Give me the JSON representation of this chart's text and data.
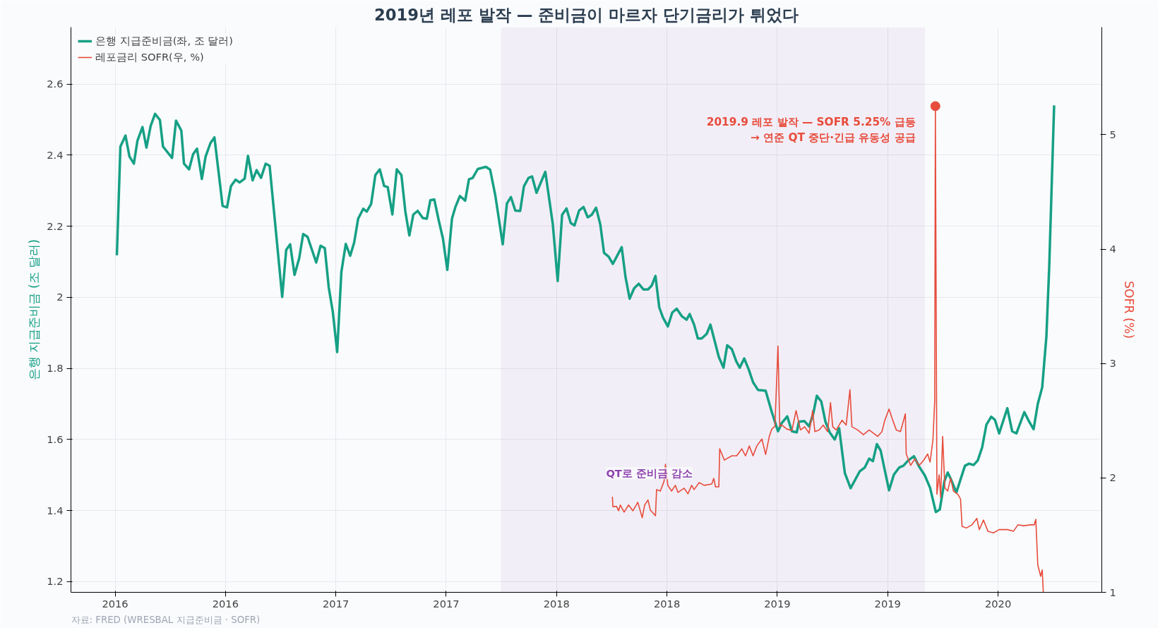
{
  "chart_data": {
    "type": "line",
    "title": "2019년 레포 발작 — 준비금이 마르자 단기금리가 튀었다",
    "ylabel": "은행 지급준비금 (조 달러)",
    "y2label": "SOFR (%)",
    "xlim": [
      2015.8,
      2020.47
    ],
    "xticks": [
      {
        "value": 2016.0,
        "label": "2016"
      },
      {
        "value": 2016.5,
        "label": "2016"
      },
      {
        "value": 2017.0,
        "label": "2017"
      },
      {
        "value": 2017.5,
        "label": "2017"
      },
      {
        "value": 2018.0,
        "label": "2018"
      },
      {
        "value": 2018.5,
        "label": "2018"
      },
      {
        "value": 2019.0,
        "label": "2019"
      },
      {
        "value": 2019.5,
        "label": "2019"
      },
      {
        "value": 2020.0,
        "label": "2020"
      }
    ],
    "ylim": [
      1.17,
      2.76
    ],
    "yticks": [
      1.2,
      1.4,
      1.6,
      1.8,
      2.0,
      2.2,
      2.4,
      2.6
    ],
    "y2lim": [
      1,
      5.94
    ],
    "y2ticks": [
      1,
      2,
      3,
      4,
      5
    ],
    "grid": true,
    "legend": "top left",
    "line_style": "solid",
    "series": [
      {
        "name": "은행 지급준비금(좌, 조 달러)",
        "color": "#16a085",
        "x": [
          2016.008,
          2016.024,
          2016.047,
          2016.065,
          2016.085,
          2016.101,
          2016.124,
          2016.142,
          2016.161,
          2016.181,
          2016.203,
          2016.217,
          2016.258,
          2016.276,
          2016.3,
          2016.312,
          2016.335,
          2016.353,
          2016.371,
          2016.393,
          2016.41,
          2016.432,
          2016.45,
          2016.487,
          2016.507,
          2016.525,
          2016.546,
          2016.564,
          2016.587,
          2016.602,
          2016.623,
          2016.641,
          2016.661,
          2016.682,
          2016.7,
          2016.757,
          2016.775,
          2016.793,
          2016.813,
          2016.834,
          2016.852,
          2016.872,
          2016.911,
          2016.931,
          2016.95,
          2016.968,
          2016.986,
          2017.006,
          2017.025,
          2017.045,
          2017.065,
          2017.083,
          2017.101,
          2017.124,
          2017.14,
          2017.16,
          2017.179,
          2017.199,
          2017.219,
          2017.235,
          2017.256,
          2017.276,
          2017.297,
          2017.315,
          2017.333,
          2017.351,
          2017.371,
          2017.394,
          2017.412,
          2017.428,
          2017.446,
          2017.467,
          2017.485,
          2017.505,
          2017.526,
          2017.541,
          2017.562,
          2017.586,
          2017.603,
          2017.62,
          2017.643,
          2017.68,
          2017.699,
          2017.722,
          2017.756,
          2017.775,
          2017.793,
          2017.813,
          2017.835,
          2017.852,
          2017.873,
          2017.889,
          2017.909,
          2017.949,
          2017.983,
          2018.005,
          2018.025,
          2018.045,
          2018.064,
          2018.081,
          2018.102,
          2018.122,
          2018.141,
          2018.159,
          2018.179,
          2018.198,
          2018.215,
          2018.236,
          2018.255,
          2018.278,
          2018.295,
          2018.312,
          2018.331,
          2018.351,
          2018.372,
          2018.394,
          2018.414,
          2018.431,
          2018.448,
          2018.465,
          2018.482,
          2018.504,
          2018.524,
          2018.544,
          2018.567,
          2018.589,
          2018.603,
          2018.623,
          2018.64,
          2018.657,
          2018.68,
          2018.697,
          2018.735,
          2018.756,
          2018.773,
          2018.794,
          2018.814,
          2018.83,
          2018.85,
          2018.871,
          2018.89,
          2018.913,
          2018.947,
          2018.975,
          2019.003,
          2019.02,
          2019.045,
          2019.066,
          2019.088,
          2019.098,
          2019.122,
          2019.144,
          2019.163,
          2019.179,
          2019.199,
          2019.218,
          2019.238,
          2019.26,
          2019.28,
          2019.306,
          2019.332,
          2019.373,
          2019.396,
          2019.416,
          2019.433,
          2019.451,
          2019.468,
          2019.506,
          2019.528,
          2019.552,
          2019.571,
          2019.593,
          2019.619,
          2019.643,
          2019.668,
          2019.692,
          2019.718,
          2019.736,
          2019.757,
          2019.772,
          2019.785,
          2019.811,
          2019.85,
          2019.869,
          2019.889,
          2019.908,
          2019.928,
          2019.947,
          2019.969,
          2019.986,
          2020.005,
          2020.042,
          2020.064,
          2020.083,
          2020.119,
          2020.141,
          2020.161,
          2020.18,
          2020.2,
          2020.219,
          2020.232,
          2020.254
        ],
        "values": [
          2.118,
          2.424,
          2.455,
          2.396,
          2.376,
          2.44,
          2.479,
          2.421,
          2.482,
          2.516,
          2.499,
          2.424,
          2.392,
          2.497,
          2.469,
          2.376,
          2.36,
          2.402,
          2.418,
          2.333,
          2.396,
          2.434,
          2.45,
          2.257,
          2.253,
          2.313,
          2.331,
          2.323,
          2.334,
          2.398,
          2.329,
          2.358,
          2.336,
          2.376,
          2.37,
          2.001,
          2.133,
          2.149,
          2.063,
          2.11,
          2.178,
          2.17,
          2.098,
          2.145,
          2.138,
          2.027,
          1.96,
          1.846,
          2.071,
          2.15,
          2.117,
          2.154,
          2.221,
          2.249,
          2.241,
          2.263,
          2.344,
          2.36,
          2.313,
          2.31,
          2.233,
          2.36,
          2.344,
          2.241,
          2.174,
          2.233,
          2.243,
          2.223,
          2.221,
          2.273,
          2.275,
          2.214,
          2.166,
          2.077,
          2.221,
          2.253,
          2.285,
          2.272,
          2.332,
          2.336,
          2.361,
          2.367,
          2.359,
          2.288,
          2.149,
          2.264,
          2.282,
          2.244,
          2.243,
          2.312,
          2.336,
          2.34,
          2.294,
          2.353,
          2.205,
          2.046,
          2.232,
          2.25,
          2.209,
          2.202,
          2.244,
          2.254,
          2.225,
          2.232,
          2.252,
          2.205,
          2.125,
          2.114,
          2.094,
          2.121,
          2.141,
          2.058,
          1.996,
          2.025,
          2.038,
          2.022,
          2.022,
          2.033,
          2.06,
          1.972,
          1.943,
          1.918,
          1.957,
          1.968,
          1.947,
          1.937,
          1.953,
          1.923,
          1.884,
          1.884,
          1.897,
          1.923,
          1.832,
          1.802,
          1.865,
          1.854,
          1.82,
          1.802,
          1.828,
          1.796,
          1.761,
          1.739,
          1.737,
          1.677,
          1.623,
          1.646,
          1.665,
          1.623,
          1.62,
          1.65,
          1.652,
          1.637,
          1.673,
          1.723,
          1.707,
          1.65,
          1.619,
          1.6,
          1.632,
          1.505,
          1.463,
          1.51,
          1.521,
          1.546,
          1.539,
          1.587,
          1.569,
          1.457,
          1.501,
          1.521,
          1.526,
          1.541,
          1.553,
          1.523,
          1.499,
          1.464,
          1.396,
          1.403,
          1.483,
          1.507,
          1.49,
          1.451,
          1.526,
          1.532,
          1.528,
          1.541,
          1.578,
          1.641,
          1.664,
          1.655,
          1.617,
          1.688,
          1.623,
          1.617,
          1.677,
          1.65,
          1.629,
          1.7,
          1.747,
          1.89,
          2.09,
          2.54
        ]
      },
      {
        "name": "레포금리 SOFR(우, %)",
        "color": "#e74c3c",
        "axis": "y2",
        "x": [
          2018.253,
          2018.255,
          2018.272,
          2018.281,
          2018.289,
          2018.306,
          2018.326,
          2018.346,
          2018.368,
          2018.388,
          2018.399,
          2018.414,
          2018.425,
          2018.448,
          2018.453,
          2018.47,
          2018.487,
          2018.493,
          2018.504,
          2018.521,
          2018.538,
          2018.55,
          2018.578,
          2018.595,
          2018.612,
          2018.623,
          2018.646,
          2018.669,
          2018.703,
          2018.712,
          2018.72,
          2018.735,
          2018.739,
          2018.76,
          2018.771,
          2018.794,
          2018.816,
          2018.839,
          2018.856,
          2018.873,
          2018.89,
          2018.907,
          2018.93,
          2018.947,
          2018.964,
          2018.975,
          2018.989,
          2019.003,
          2019.011,
          2019.02,
          2019.043,
          2019.066,
          2019.085,
          2019.105,
          2019.124,
          2019.144,
          2019.16,
          2019.17,
          2019.189,
          2019.208,
          2019.228,
          2019.241,
          2019.251,
          2019.267,
          2019.293,
          2019.312,
          2019.329,
          2019.338,
          2019.364,
          2019.39,
          2019.416,
          2019.435,
          2019.455,
          2019.474,
          2019.487,
          2019.506,
          2019.523,
          2019.539,
          2019.558,
          2019.58,
          2019.584,
          2019.604,
          2019.623,
          2019.643,
          2019.662,
          2019.681,
          2019.692,
          2019.705,
          2019.713,
          2019.716,
          2019.723,
          2019.733,
          2019.74,
          2019.749,
          2019.759,
          2019.772,
          2019.785,
          2019.798,
          2019.818,
          2019.83,
          2019.837,
          2019.856,
          2019.882,
          2019.904,
          2019.915,
          2019.934,
          2019.954,
          2019.979,
          2020.005,
          2020.044,
          2020.07,
          2020.09,
          2020.115,
          2020.148,
          2020.164,
          2020.171,
          2020.18,
          2020.193,
          2020.2,
          2020.205
        ],
        "values": [
          1.836,
          1.75,
          1.75,
          1.713,
          1.763,
          1.701,
          1.763,
          1.713,
          1.787,
          1.652,
          1.763,
          1.807,
          1.718,
          1.669,
          1.898,
          1.885,
          1.972,
          2.119,
          1.935,
          1.885,
          1.935,
          1.873,
          1.91,
          1.861,
          1.935,
          1.898,
          1.959,
          1.935,
          1.947,
          1.996,
          1.922,
          1.922,
          2.254,
          2.156,
          2.168,
          2.193,
          2.193,
          2.254,
          2.193,
          2.279,
          2.193,
          2.279,
          2.34,
          2.205,
          2.365,
          2.427,
          2.451,
          3.152,
          2.451,
          2.463,
          2.427,
          2.414,
          2.588,
          2.419,
          2.447,
          2.391,
          2.588,
          2.405,
          2.419,
          2.462,
          2.405,
          2.658,
          2.447,
          2.419,
          2.504,
          2.462,
          2.771,
          2.447,
          2.419,
          2.377,
          2.419,
          2.391,
          2.363,
          2.405,
          2.504,
          2.602,
          2.504,
          2.419,
          2.405,
          2.56,
          2.209,
          2.11,
          2.166,
          2.11,
          2.152,
          2.209,
          2.138,
          2.335,
          2.672,
          5.25,
          1.857,
          2.026,
          1.829,
          2.363,
          1.913,
          1.885,
          1.998,
          1.885,
          1.857,
          1.815,
          1.576,
          1.562,
          1.59,
          1.646,
          1.548,
          1.632,
          1.534,
          1.52,
          1.548,
          1.548,
          1.534,
          1.59,
          1.582,
          1.59,
          1.59,
          1.638,
          1.239,
          1.14,
          1.196,
          1.0
        ]
      },
      {
        "type": "scatter",
        "color": "#e74c3c",
        "axis": "y2",
        "marker": "circle",
        "x": [
          2019.716
        ],
        "values": [
          5.25
        ]
      }
    ],
    "bands": [
      {
        "axis": "x",
        "from": 2017.748,
        "to": 2019.669,
        "label": "QT로 준비금 감소",
        "color": "#8e44ad"
      }
    ],
    "annotations": [
      "2019.9 레포 발작 — SOFR 5.25% 급등\n→ 연준 QT 중단·긴급 유동성 공급",
      "자료: FRED (WRESBAL 지급준비금 · SOFR)"
    ]
  }
}
